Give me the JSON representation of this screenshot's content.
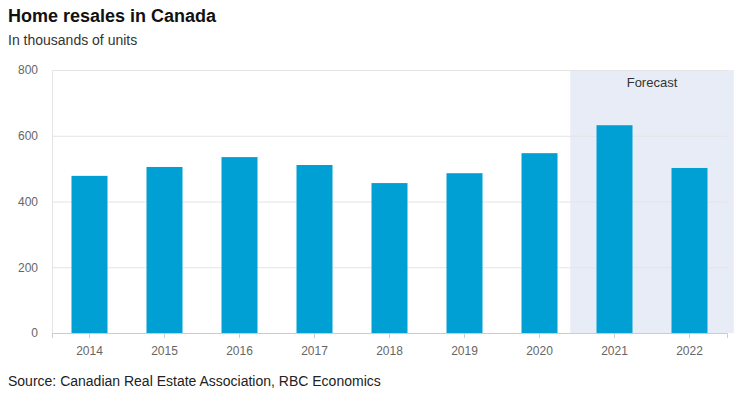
{
  "chart_data": {
    "type": "bar",
    "title": "Home resales in Canada",
    "subtitle": "In thousands of units",
    "categories": [
      "2014",
      "2015",
      "2016",
      "2017",
      "2018",
      "2019",
      "2020",
      "2021",
      "2022"
    ],
    "values": [
      478,
      505,
      535,
      511,
      456,
      486,
      547,
      632,
      502
    ],
    "color": "#009fd4",
    "ylim": [
      0,
      800
    ],
    "yticks": [
      0,
      200,
      400,
      600,
      800
    ],
    "grid": true,
    "annotations": [
      {
        "text": "Forecast",
        "from": "2021",
        "to": "2022"
      }
    ],
    "source": "Source: Canadian Real Estate Association, RBC Economics"
  }
}
